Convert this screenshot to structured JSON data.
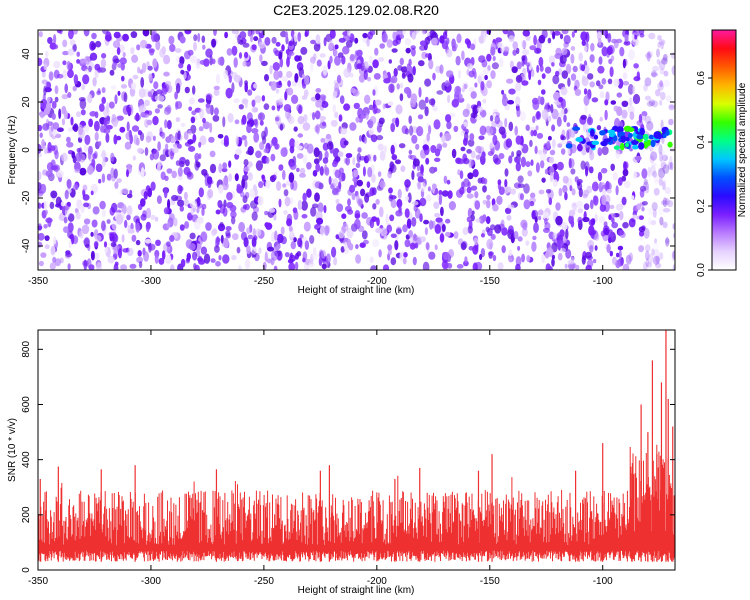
{
  "title": "C2E3.2025.129.02.08.R20",
  "chart_data": [
    {
      "type": "heatmap",
      "xlabel": "Height of straight line (km)",
      "ylabel": "Frequency (Hz)",
      "xlim": [
        -350,
        -68
      ],
      "ylim": [
        -50,
        50
      ],
      "x_ticks": [
        -350,
        -300,
        -250,
        -200,
        -150,
        -100
      ],
      "y_ticks": [
        -40,
        -20,
        0,
        20,
        40
      ],
      "grid": false,
      "colorbar": {
        "label": "Normalized spectral amplitude",
        "range": [
          0,
          0.75
        ],
        "ticks": [
          0,
          0.2,
          0.4,
          0.6
        ],
        "colors": [
          "#ffffff",
          "#e6d2ff",
          "#b97cff",
          "#7a1fff",
          "#2a0bff",
          "#0050ff",
          "#00c8ff",
          "#00ff88",
          "#33ff00",
          "#d8ff00",
          "#ffb400",
          "#ff5a00",
          "#ff0a14",
          "#ff1aa0"
        ]
      },
      "features": [
        {
          "x_range": [
            -122,
            -70
          ],
          "y_center": 5,
          "description": "strong band"
        }
      ]
    },
    {
      "type": "line",
      "xlabel": "Height of straight line (km)",
      "ylabel": "SNR (10 * v/v)",
      "xlim": [
        -350,
        -68
      ],
      "ylim": [
        0,
        870
      ],
      "x_ticks": [
        -350,
        -300,
        -250,
        -200,
        -150,
        -100
      ],
      "y_ticks": [
        0,
        200,
        400,
        600,
        800
      ],
      "grid": false,
      "series": [
        {
          "color": "#ee3030",
          "baseline_mean": 130,
          "baseline_band": [
            30,
            290
          ],
          "points": [
            [
              -349,
              330
            ],
            [
              -341,
              375
            ],
            [
              -322,
              365
            ],
            [
              -307,
              380
            ],
            [
              -271,
              365
            ],
            [
              -225,
              360
            ],
            [
              -221,
              380
            ],
            [
              -192,
              330
            ],
            [
              -181,
              370
            ],
            [
              -155,
              360
            ],
            [
              -149,
              420
            ],
            [
              -112,
              360
            ],
            [
              -100,
              460
            ],
            [
              -87,
              350
            ],
            [
              -83,
              600
            ],
            [
              -80,
              500
            ],
            [
              -78,
              760
            ],
            [
              -76,
              420
            ],
            [
              -74,
              680
            ],
            [
              -72,
              870
            ],
            [
              -71,
              620
            ],
            [
              -69,
              520
            ]
          ]
        }
      ]
    }
  ]
}
